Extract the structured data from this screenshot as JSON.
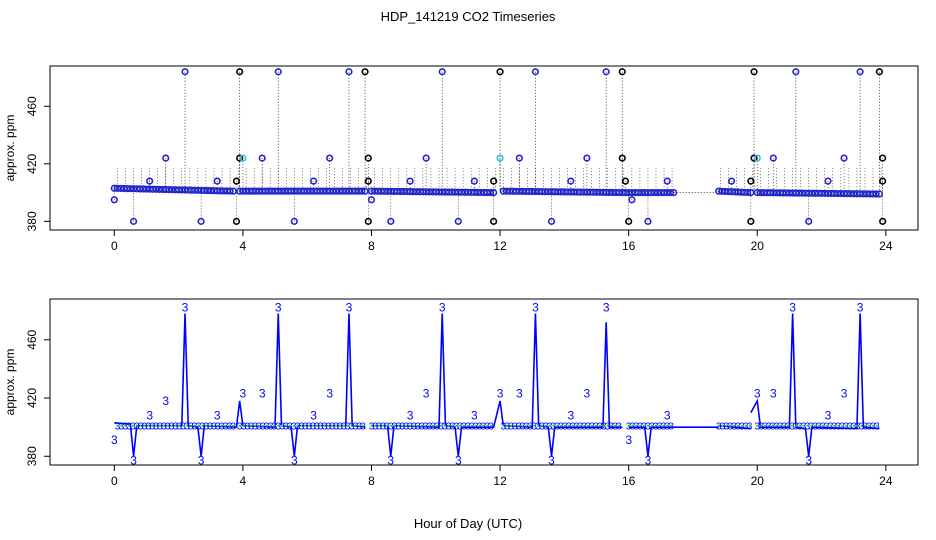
{
  "chart_data": {
    "title": "HDP_141219  CO2 Timeseries",
    "xlabel": "Hour of Day (UTC)",
    "ylabel": "approx. ppm",
    "colors": {
      "raw": "#000000",
      "flagged": "#2222cc",
      "cyan": "#33bbee",
      "green": "#22cc44",
      "line": "#0000ff",
      "digit": "#0000ff"
    },
    "panels": [
      {
        "type": "scatter",
        "name": "raw-points-panel",
        "xlim": [
          -2,
          25
        ],
        "ylim": [
          374,
          488
        ],
        "xticks": [
          "0",
          "4",
          "8",
          "12",
          "16",
          "20",
          "24"
        ],
        "yticks": [
          "380",
          "420",
          "460"
        ],
        "xtickValues": [
          0,
          4,
          8,
          12,
          16,
          20,
          24
        ],
        "ytickValues": [
          380,
          420,
          460
        ],
        "baselineSegments": [
          [
            0,
            3.7,
            403,
            401
          ],
          [
            3.9,
            7.8,
            401,
            401
          ],
          [
            8.0,
            11.8,
            401,
            400
          ],
          [
            12.1,
            15.8,
            401,
            400
          ],
          [
            15.9,
            17.4,
            400,
            400
          ],
          [
            17.4,
            18.8,
            400,
            400
          ],
          [
            18.8,
            19.8,
            401,
            400
          ],
          [
            20.0,
            23.8,
            400,
            399
          ]
        ],
        "spikes": [
          {
            "x": 2.2,
            "y": 484,
            "c": "flagged"
          },
          {
            "x": 3.9,
            "y": 484,
            "c": "raw"
          },
          {
            "x": 5.1,
            "y": 484,
            "c": "flagged"
          },
          {
            "x": 7.3,
            "y": 484,
            "c": "flagged"
          },
          {
            "x": 7.8,
            "y": 484,
            "c": "raw"
          },
          {
            "x": 10.2,
            "y": 484,
            "c": "flagged"
          },
          {
            "x": 12.0,
            "y": 484,
            "c": "raw"
          },
          {
            "x": 13.1,
            "y": 484,
            "c": "flagged"
          },
          {
            "x": 15.3,
            "y": 484,
            "c": "flagged"
          },
          {
            "x": 15.8,
            "y": 484,
            "c": "raw"
          },
          {
            "x": 19.9,
            "y": 484,
            "c": "raw"
          },
          {
            "x": 21.2,
            "y": 484,
            "c": "flagged"
          },
          {
            "x": 23.2,
            "y": 484,
            "c": "flagged"
          },
          {
            "x": 23.8,
            "y": 484,
            "c": "raw"
          }
        ],
        "midPoints": [
          {
            "x": 1.1,
            "y": 408,
            "c": "flagged"
          },
          {
            "x": 1.6,
            "y": 424,
            "c": "flagged"
          },
          {
            "x": 3.2,
            "y": 408,
            "c": "flagged"
          },
          {
            "x": 3.8,
            "y": 408,
            "c": "raw"
          },
          {
            "x": 3.9,
            "y": 424,
            "c": "raw"
          },
          {
            "x": 4.0,
            "y": 424,
            "c": "cyan"
          },
          {
            "x": 4.6,
            "y": 424,
            "c": "flagged"
          },
          {
            "x": 6.2,
            "y": 408,
            "c": "flagged"
          },
          {
            "x": 6.7,
            "y": 424,
            "c": "flagged"
          },
          {
            "x": 7.9,
            "y": 424,
            "c": "raw"
          },
          {
            "x": 7.9,
            "y": 408,
            "c": "raw"
          },
          {
            "x": 9.2,
            "y": 408,
            "c": "flagged"
          },
          {
            "x": 9.7,
            "y": 424,
            "c": "flagged"
          },
          {
            "x": 11.2,
            "y": 408,
            "c": "flagged"
          },
          {
            "x": 11.8,
            "y": 408,
            "c": "raw"
          },
          {
            "x": 12.0,
            "y": 424,
            "c": "cyan"
          },
          {
            "x": 12.6,
            "y": 424,
            "c": "flagged"
          },
          {
            "x": 14.2,
            "y": 408,
            "c": "flagged"
          },
          {
            "x": 14.7,
            "y": 424,
            "c": "flagged"
          },
          {
            "x": 15.8,
            "y": 424,
            "c": "raw"
          },
          {
            "x": 15.9,
            "y": 408,
            "c": "raw"
          },
          {
            "x": 17.2,
            "y": 408,
            "c": "flagged"
          },
          {
            "x": 19.2,
            "y": 408,
            "c": "flagged"
          },
          {
            "x": 19.8,
            "y": 408,
            "c": "raw"
          },
          {
            "x": 19.9,
            "y": 424,
            "c": "raw"
          },
          {
            "x": 20.0,
            "y": 424,
            "c": "cyan"
          },
          {
            "x": 20.5,
            "y": 424,
            "c": "flagged"
          },
          {
            "x": 22.2,
            "y": 408,
            "c": "flagged"
          },
          {
            "x": 22.7,
            "y": 424,
            "c": "flagged"
          },
          {
            "x": 23.9,
            "y": 424,
            "c": "raw"
          },
          {
            "x": 23.9,
            "y": 408,
            "c": "raw"
          }
        ],
        "lowPoints": [
          {
            "x": 0.0,
            "y": 395,
            "c": "flagged"
          },
          {
            "x": 0.6,
            "y": 380,
            "c": "flagged"
          },
          {
            "x": 2.7,
            "y": 380,
            "c": "flagged"
          },
          {
            "x": 3.8,
            "y": 380,
            "c": "raw"
          },
          {
            "x": 5.6,
            "y": 380,
            "c": "flagged"
          },
          {
            "x": 7.9,
            "y": 380,
            "c": "raw"
          },
          {
            "x": 8.0,
            "y": 395,
            "c": "flagged"
          },
          {
            "x": 8.6,
            "y": 380,
            "c": "flagged"
          },
          {
            "x": 10.7,
            "y": 380,
            "c": "flagged"
          },
          {
            "x": 11.8,
            "y": 380,
            "c": "raw"
          },
          {
            "x": 13.6,
            "y": 380,
            "c": "flagged"
          },
          {
            "x": 16.0,
            "y": 380,
            "c": "raw"
          },
          {
            "x": 16.1,
            "y": 395,
            "c": "flagged"
          },
          {
            "x": 16.6,
            "y": 380,
            "c": "flagged"
          },
          {
            "x": 19.8,
            "y": 380,
            "c": "raw"
          },
          {
            "x": 21.6,
            "y": 380,
            "c": "flagged"
          },
          {
            "x": 23.9,
            "y": 380,
            "c": "raw"
          }
        ]
      },
      {
        "type": "line",
        "name": "filtered-line-panel",
        "xlim": [
          -2,
          25
        ],
        "ylim": [
          374,
          488
        ],
        "xticks": [
          "0",
          "4",
          "8",
          "12",
          "16",
          "20",
          "24"
        ],
        "yticks": [
          "380",
          "420",
          "460"
        ],
        "xtickValues": [
          0,
          4,
          8,
          12,
          16,
          20,
          24
        ],
        "ytickValues": [
          380,
          420,
          460
        ],
        "series": [
          {
            "name": "filtered CO2",
            "x": [
              0,
              0.5,
              0.6,
              0.7,
              2.1,
              2.2,
              2.3,
              2.6,
              2.7,
              2.8,
              3.8,
              3.9,
              4.0,
              5.0,
              5.1,
              5.2,
              5.5,
              5.6,
              5.7,
              7.2,
              7.3,
              7.4,
              7.8
            ],
            "y": [
              403,
              402,
              380,
              401,
              401,
              478,
              401,
              400,
              380,
              401,
              400,
              418,
              401,
              400,
              478,
              401,
              400,
              380,
              401,
              401,
              478,
              401,
              400
            ]
          },
          {
            "name": "filtered CO2 2",
            "x": [
              8.0,
              8.5,
              8.6,
              8.7,
              10.1,
              10.2,
              10.3,
              10.6,
              10.7,
              10.8,
              11.8,
              12.0,
              12.1,
              13.0,
              13.1,
              13.2,
              13.5,
              13.6,
              13.7,
              15.2,
              15.3,
              15.4,
              15.8
            ],
            "y": [
              401,
              401,
              380,
              401,
              400,
              478,
              401,
              400,
              380,
              400,
              400,
              418,
              401,
              400,
              478,
              401,
              400,
              380,
              400,
              400,
              472,
              400,
              400
            ]
          },
          {
            "name": "filtered CO2 3",
            "x": [
              16.0,
              16.5,
              16.6,
              16.7,
              17.4
            ],
            "y": [
              400,
              400,
              380,
              400,
              400
            ]
          },
          {
            "name": "filtered CO2 gap",
            "x": [
              17.4,
              18.8
            ],
            "y": [
              400,
              400
            ]
          },
          {
            "name": "filtered CO2 4",
            "x": [
              18.8,
              19.8
            ],
            "y": [
              401,
              399
            ]
          },
          {
            "name": "filtered CO2 5",
            "x": [
              19.8,
              20.0,
              20.1,
              21.0,
              21.1,
              21.2,
              21.5,
              21.6,
              21.7,
              23.1,
              23.2,
              23.3,
              23.8
            ],
            "y": [
              410,
              418,
              400,
              400,
              478,
              400,
              399,
              380,
              400,
              399,
              478,
              400,
              399
            ]
          }
        ],
        "labels": [
          {
            "x": 0.0,
            "y": 391,
            "text": "3"
          },
          {
            "x": 0.6,
            "y": 377,
            "text": "3"
          },
          {
            "x": 1.1,
            "y": 408,
            "text": "3"
          },
          {
            "x": 1.6,
            "y": 418,
            "text": "3"
          },
          {
            "x": 2.2,
            "y": 482,
            "text": "3"
          },
          {
            "x": 2.7,
            "y": 377,
            "text": "3"
          },
          {
            "x": 3.2,
            "y": 408,
            "text": "3"
          },
          {
            "x": 4.0,
            "y": 423,
            "text": "3"
          },
          {
            "x": 4.6,
            "y": 423,
            "text": "3"
          },
          {
            "x": 5.1,
            "y": 482,
            "text": "3"
          },
          {
            "x": 5.6,
            "y": 377,
            "text": "3"
          },
          {
            "x": 6.2,
            "y": 408,
            "text": "3"
          },
          {
            "x": 6.7,
            "y": 423,
            "text": "3"
          },
          {
            "x": 7.3,
            "y": 482,
            "text": "3"
          },
          {
            "x": 8.6,
            "y": 377,
            "text": "3"
          },
          {
            "x": 9.2,
            "y": 408,
            "text": "3"
          },
          {
            "x": 9.7,
            "y": 423,
            "text": "3"
          },
          {
            "x": 10.2,
            "y": 482,
            "text": "3"
          },
          {
            "x": 10.7,
            "y": 377,
            "text": "3"
          },
          {
            "x": 11.2,
            "y": 408,
            "text": "3"
          },
          {
            "x": 12.0,
            "y": 423,
            "text": "3"
          },
          {
            "x": 12.6,
            "y": 423,
            "text": "3"
          },
          {
            "x": 13.1,
            "y": 482,
            "text": "3"
          },
          {
            "x": 13.6,
            "y": 377,
            "text": "3"
          },
          {
            "x": 14.2,
            "y": 408,
            "text": "3"
          },
          {
            "x": 14.7,
            "y": 423,
            "text": "3"
          },
          {
            "x": 15.3,
            "y": 482,
            "text": "3"
          },
          {
            "x": 16.0,
            "y": 391,
            "text": "3"
          },
          {
            "x": 16.6,
            "y": 377,
            "text": "3"
          },
          {
            "x": 17.2,
            "y": 408,
            "text": "3"
          },
          {
            "x": 20.0,
            "y": 423,
            "text": "3"
          },
          {
            "x": 20.5,
            "y": 423,
            "text": "3"
          },
          {
            "x": 21.1,
            "y": 482,
            "text": "3"
          },
          {
            "x": 21.6,
            "y": 377,
            "text": "3"
          },
          {
            "x": 22.2,
            "y": 408,
            "text": "3"
          },
          {
            "x": 22.7,
            "y": 423,
            "text": "3"
          },
          {
            "x": 23.2,
            "y": 482,
            "text": "3"
          }
        ]
      }
    ]
  }
}
